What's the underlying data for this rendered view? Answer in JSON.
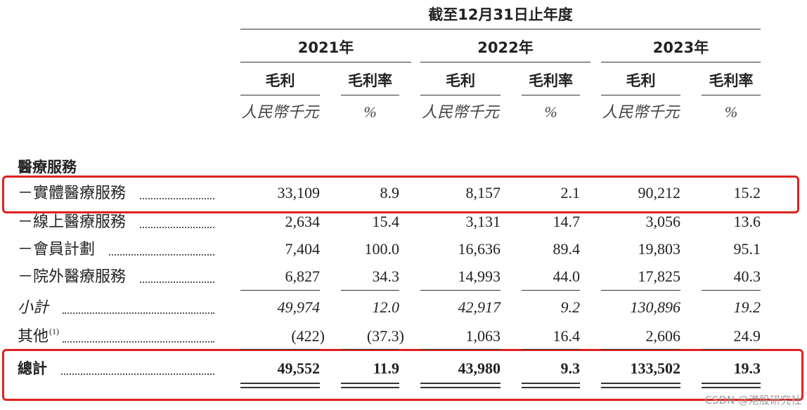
{
  "table": {
    "period": "截至12月31日止年度",
    "groups": [
      {
        "year": "2021年",
        "gross_profit": "毛利",
        "margin": "毛利率",
        "gp_unit": "人民幣千元",
        "margin_unit": "%"
      },
      {
        "year": "2022年",
        "gross_profit": "毛利",
        "margin": "毛利率",
        "gp_unit": "人民幣千元",
        "margin_unit": "%"
      },
      {
        "year": "2023年",
        "gross_profit": "毛利",
        "margin": "毛利率",
        "gp_unit": "人民幣千元",
        "margin_unit": "%"
      }
    ],
    "section": "醫療服務",
    "rows": [
      {
        "label": "－實體醫療服務",
        "values": [
          "33,109",
          "8.9",
          "8,157",
          "2.1",
          "90,212",
          "15.2"
        ]
      },
      {
        "label": "－線上醫療服務",
        "values": [
          "2,634",
          "15.4",
          "3,131",
          "14.7",
          "3,056",
          "13.6"
        ]
      },
      {
        "label": "－會員計劃",
        "values": [
          "7,404",
          "100.0",
          "16,636",
          "89.4",
          "19,803",
          "95.1"
        ]
      },
      {
        "label": "－院外醫療服務",
        "values": [
          "6,827",
          "34.3",
          "14,993",
          "44.0",
          "17,825",
          "40.3"
        ]
      },
      {
        "label": "小計",
        "style": "italic",
        "values": [
          "49,974",
          "12.0",
          "42,917",
          "9.2",
          "130,896",
          "19.2"
        ]
      },
      {
        "label": "其他",
        "note": "(1)",
        "values": [
          "(422)",
          "(37.3)",
          "1,063",
          "16.4",
          "2,606",
          "24.9"
        ]
      },
      {
        "label": "總計",
        "style": "bold",
        "values": [
          "49,552",
          "11.9",
          "43,980",
          "9.3",
          "133,502",
          "19.3"
        ]
      }
    ],
    "watermark": "CSDN @港股研究社"
  }
}
